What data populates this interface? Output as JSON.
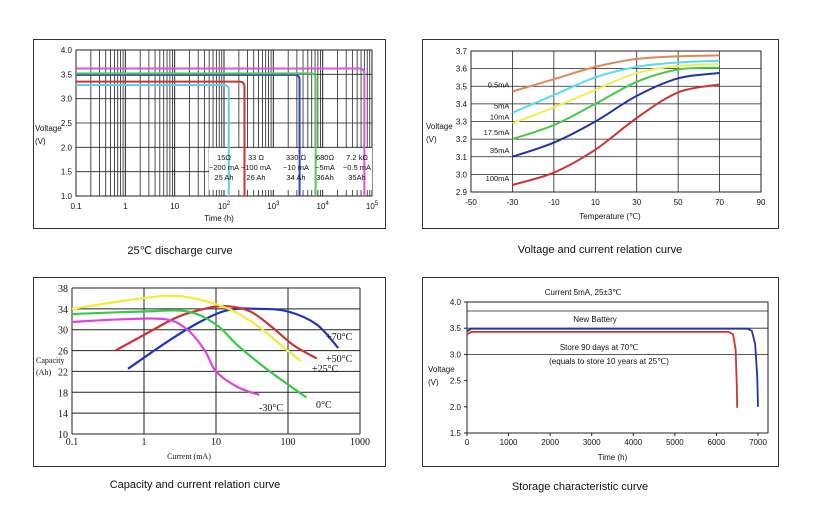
{
  "captions": [
    "25℃ discharge curve",
    "Voltage and current relation curve",
    "Capacity and current relation curve",
    "Storage characteristic curve"
  ],
  "chart_data": [
    {
      "type": "line",
      "caption": "25℃ discharge curve",
      "xlabel": "Time (h)",
      "ylabel": [
        "Voltage",
        "(V)"
      ],
      "x_scale": "log",
      "xlim": [
        0.1,
        100000
      ],
      "ylim": [
        1.0,
        4.0
      ],
      "y_ticks": [
        "1.0",
        "1.5",
        "2.0",
        "2.5",
        "3.0",
        "3.5",
        "4.0"
      ],
      "x_ticks": [
        {
          "base": "0.1",
          "exp": ""
        },
        {
          "base": "1",
          "exp": ""
        },
        {
          "base": "10",
          "exp": ""
        },
        {
          "base": "10",
          "exp": "2"
        },
        {
          "base": "10",
          "exp": "3"
        },
        {
          "base": "10",
          "exp": "4"
        },
        {
          "base": "10",
          "exp": "5"
        }
      ],
      "grid": true,
      "series": [
        {
          "label": [
            "15Ω",
            "~200 mA",
            "25 Ah"
          ],
          "voltage": 3.28,
          "end_time": 125,
          "color": "#66ccee"
        },
        {
          "label": [
            "33 Ω",
            "~100 mA",
            "26 Ah"
          ],
          "voltage": 3.35,
          "end_time": 260,
          "color": "#cc3333"
        },
        {
          "label": [
            "330 Ω",
            "~10 mA",
            "34 Ah"
          ],
          "voltage": 3.49,
          "end_time": 3400,
          "color": "#3344bb"
        },
        {
          "label": [
            "680Ω",
            "~5mA",
            "36Ah"
          ],
          "voltage": 3.52,
          "end_time": 7200,
          "color": "#55cc55"
        },
        {
          "label": [
            "7.2 kΩ",
            "~0.5 mA",
            "35Ah"
          ],
          "voltage": 3.62,
          "end_time": 70000,
          "color": "#dd55dd"
        }
      ]
    },
    {
      "type": "line",
      "caption": "Voltage and current relation curve",
      "xlabel": "Temperature (℃)",
      "ylabel": [
        "Voltage",
        "(V)"
      ],
      "xlim": [
        -50,
        90
      ],
      "ylim": [
        2.9,
        3.7
      ],
      "x_ticks": [
        "-50",
        "-30",
        "-10",
        "10",
        "30",
        "50",
        "70",
        "90"
      ],
      "y_ticks": [
        "2.9",
        "3.0",
        "3.1",
        "3.2",
        "3.3",
        "3.4",
        "3.5",
        "3.6",
        "3.7"
      ],
      "grid": true,
      "x": [
        -30,
        -10,
        10,
        30,
        50,
        70
      ],
      "series": [
        {
          "label": "0.5mA",
          "color": "#dd8855",
          "values": [
            3.47,
            3.54,
            3.61,
            3.655,
            3.67,
            3.675
          ]
        },
        {
          "label": "5mA",
          "color": "#55ddee",
          "values": [
            3.35,
            3.45,
            3.55,
            3.61,
            3.635,
            3.645
          ]
        },
        {
          "label": "10mA",
          "color": "#eeee55",
          "values": [
            3.29,
            3.38,
            3.48,
            3.575,
            3.615,
            3.625
          ]
        },
        {
          "label": "17.5mA",
          "color": "#44cc44",
          "values": [
            3.2,
            3.28,
            3.4,
            3.525,
            3.595,
            3.605
          ]
        },
        {
          "label": "35mA",
          "color": "#2233aa",
          "values": [
            3.1,
            3.18,
            3.3,
            3.445,
            3.545,
            3.575
          ]
        },
        {
          "label": "100mA",
          "color": "#cc3333",
          "values": [
            2.94,
            3.01,
            3.14,
            3.32,
            3.465,
            3.51
          ]
        }
      ]
    },
    {
      "type": "line",
      "caption": "Capacity and current relation curve",
      "xlabel": "Current (mA)",
      "ylabel": [
        "Capacity",
        "(Ah)"
      ],
      "x_scale": "log",
      "xlim": [
        0.1,
        1000
      ],
      "ylim": [
        10,
        38
      ],
      "x_ticks": [
        "0.1",
        "1",
        "10",
        "100",
        "1000"
      ],
      "y_ticks": [
        "10",
        "14",
        "18",
        "22",
        "26",
        "30",
        "34",
        "38"
      ],
      "grid": true,
      "series": [
        {
          "label": "+70°C",
          "color": "#2233bb",
          "points": [
            [
              0.6,
              22.5
            ],
            [
              2,
              27.5
            ],
            [
              6,
              31.5
            ],
            [
              15,
              33.8
            ],
            [
              40,
              34
            ],
            [
              100,
              33.5
            ],
            [
              250,
              31
            ],
            [
              500,
              26.5
            ]
          ]
        },
        {
          "label": "+50°C",
          "color": "#cc3333",
          "points": [
            [
              0.4,
              26
            ],
            [
              1,
              29
            ],
            [
              3,
              32.5
            ],
            [
              8,
              34.2
            ],
            [
              15,
              34.5
            ],
            [
              30,
              33.5
            ],
            [
              60,
              30.5
            ],
            [
              120,
              27
            ],
            [
              250,
              24.5
            ]
          ]
        },
        {
          "label": "+25°C",
          "color": "#eeee33",
          "points": [
            [
              0.1,
              34
            ],
            [
              0.5,
              35.5
            ],
            [
              2,
              36.5
            ],
            [
              5,
              36
            ],
            [
              15,
              34
            ],
            [
              40,
              30.5
            ],
            [
              80,
              27
            ],
            [
              150,
              24
            ]
          ]
        },
        {
          "label": "0°C",
          "color": "#33cc44",
          "points": [
            [
              0.1,
              33
            ],
            [
              1,
              33.5
            ],
            [
              4,
              33.5
            ],
            [
              10,
              31
            ],
            [
              20,
              27
            ],
            [
              50,
              22.5
            ],
            [
              100,
              19.5
            ],
            [
              180,
              17
            ]
          ]
        },
        {
          "label": "-30°C",
          "color": "#dd44dd",
          "points": [
            [
              0.1,
              31.5
            ],
            [
              0.5,
              32
            ],
            [
              2,
              32
            ],
            [
              4,
              30
            ],
            [
              7,
              26
            ],
            [
              10,
              22
            ],
            [
              20,
              19
            ],
            [
              40,
              17.5
            ]
          ]
        }
      ]
    },
    {
      "type": "line",
      "caption": "Storage characteristic curve",
      "title": "Current 5mA, 25±3℃",
      "xlabel": "Time (h)",
      "ylabel": [
        "Voltage",
        "(V)"
      ],
      "xlim": [
        0,
        7000
      ],
      "ylim": [
        1.5,
        4.0
      ],
      "x_ticks": [
        "0",
        "1000",
        "2000",
        "3000",
        "4000",
        "5000",
        "6000",
        "7000"
      ],
      "y_ticks": [
        "1.5",
        "2.0",
        "2.5",
        "3.0",
        "3.5",
        "4.0"
      ],
      "grid": true,
      "annotations": {
        "new_battery": "New Battery",
        "stored": [
          "Store 90 days at 70℃",
          "(equals to store 10 years at 25℃)"
        ]
      },
      "series": [
        {
          "label": "New Battery",
          "color": "#2233aa",
          "points": [
            [
              0,
              3.44
            ],
            [
              100,
              3.49
            ],
            [
              2000,
              3.49
            ],
            [
              6750,
              3.49
            ],
            [
              6850,
              3.45
            ],
            [
              6930,
              3.2
            ],
            [
              6980,
              2.6
            ],
            [
              7000,
              2.0
            ]
          ]
        },
        {
          "label": "Store 90 days at 70℃",
          "color": "#cc3333",
          "points": [
            [
              0,
              3.38
            ],
            [
              100,
              3.43
            ],
            [
              2000,
              3.43
            ],
            [
              6300,
              3.43
            ],
            [
              6400,
              3.38
            ],
            [
              6460,
              3.1
            ],
            [
              6490,
              2.4
            ],
            [
              6500,
              1.98
            ]
          ]
        }
      ]
    }
  ]
}
